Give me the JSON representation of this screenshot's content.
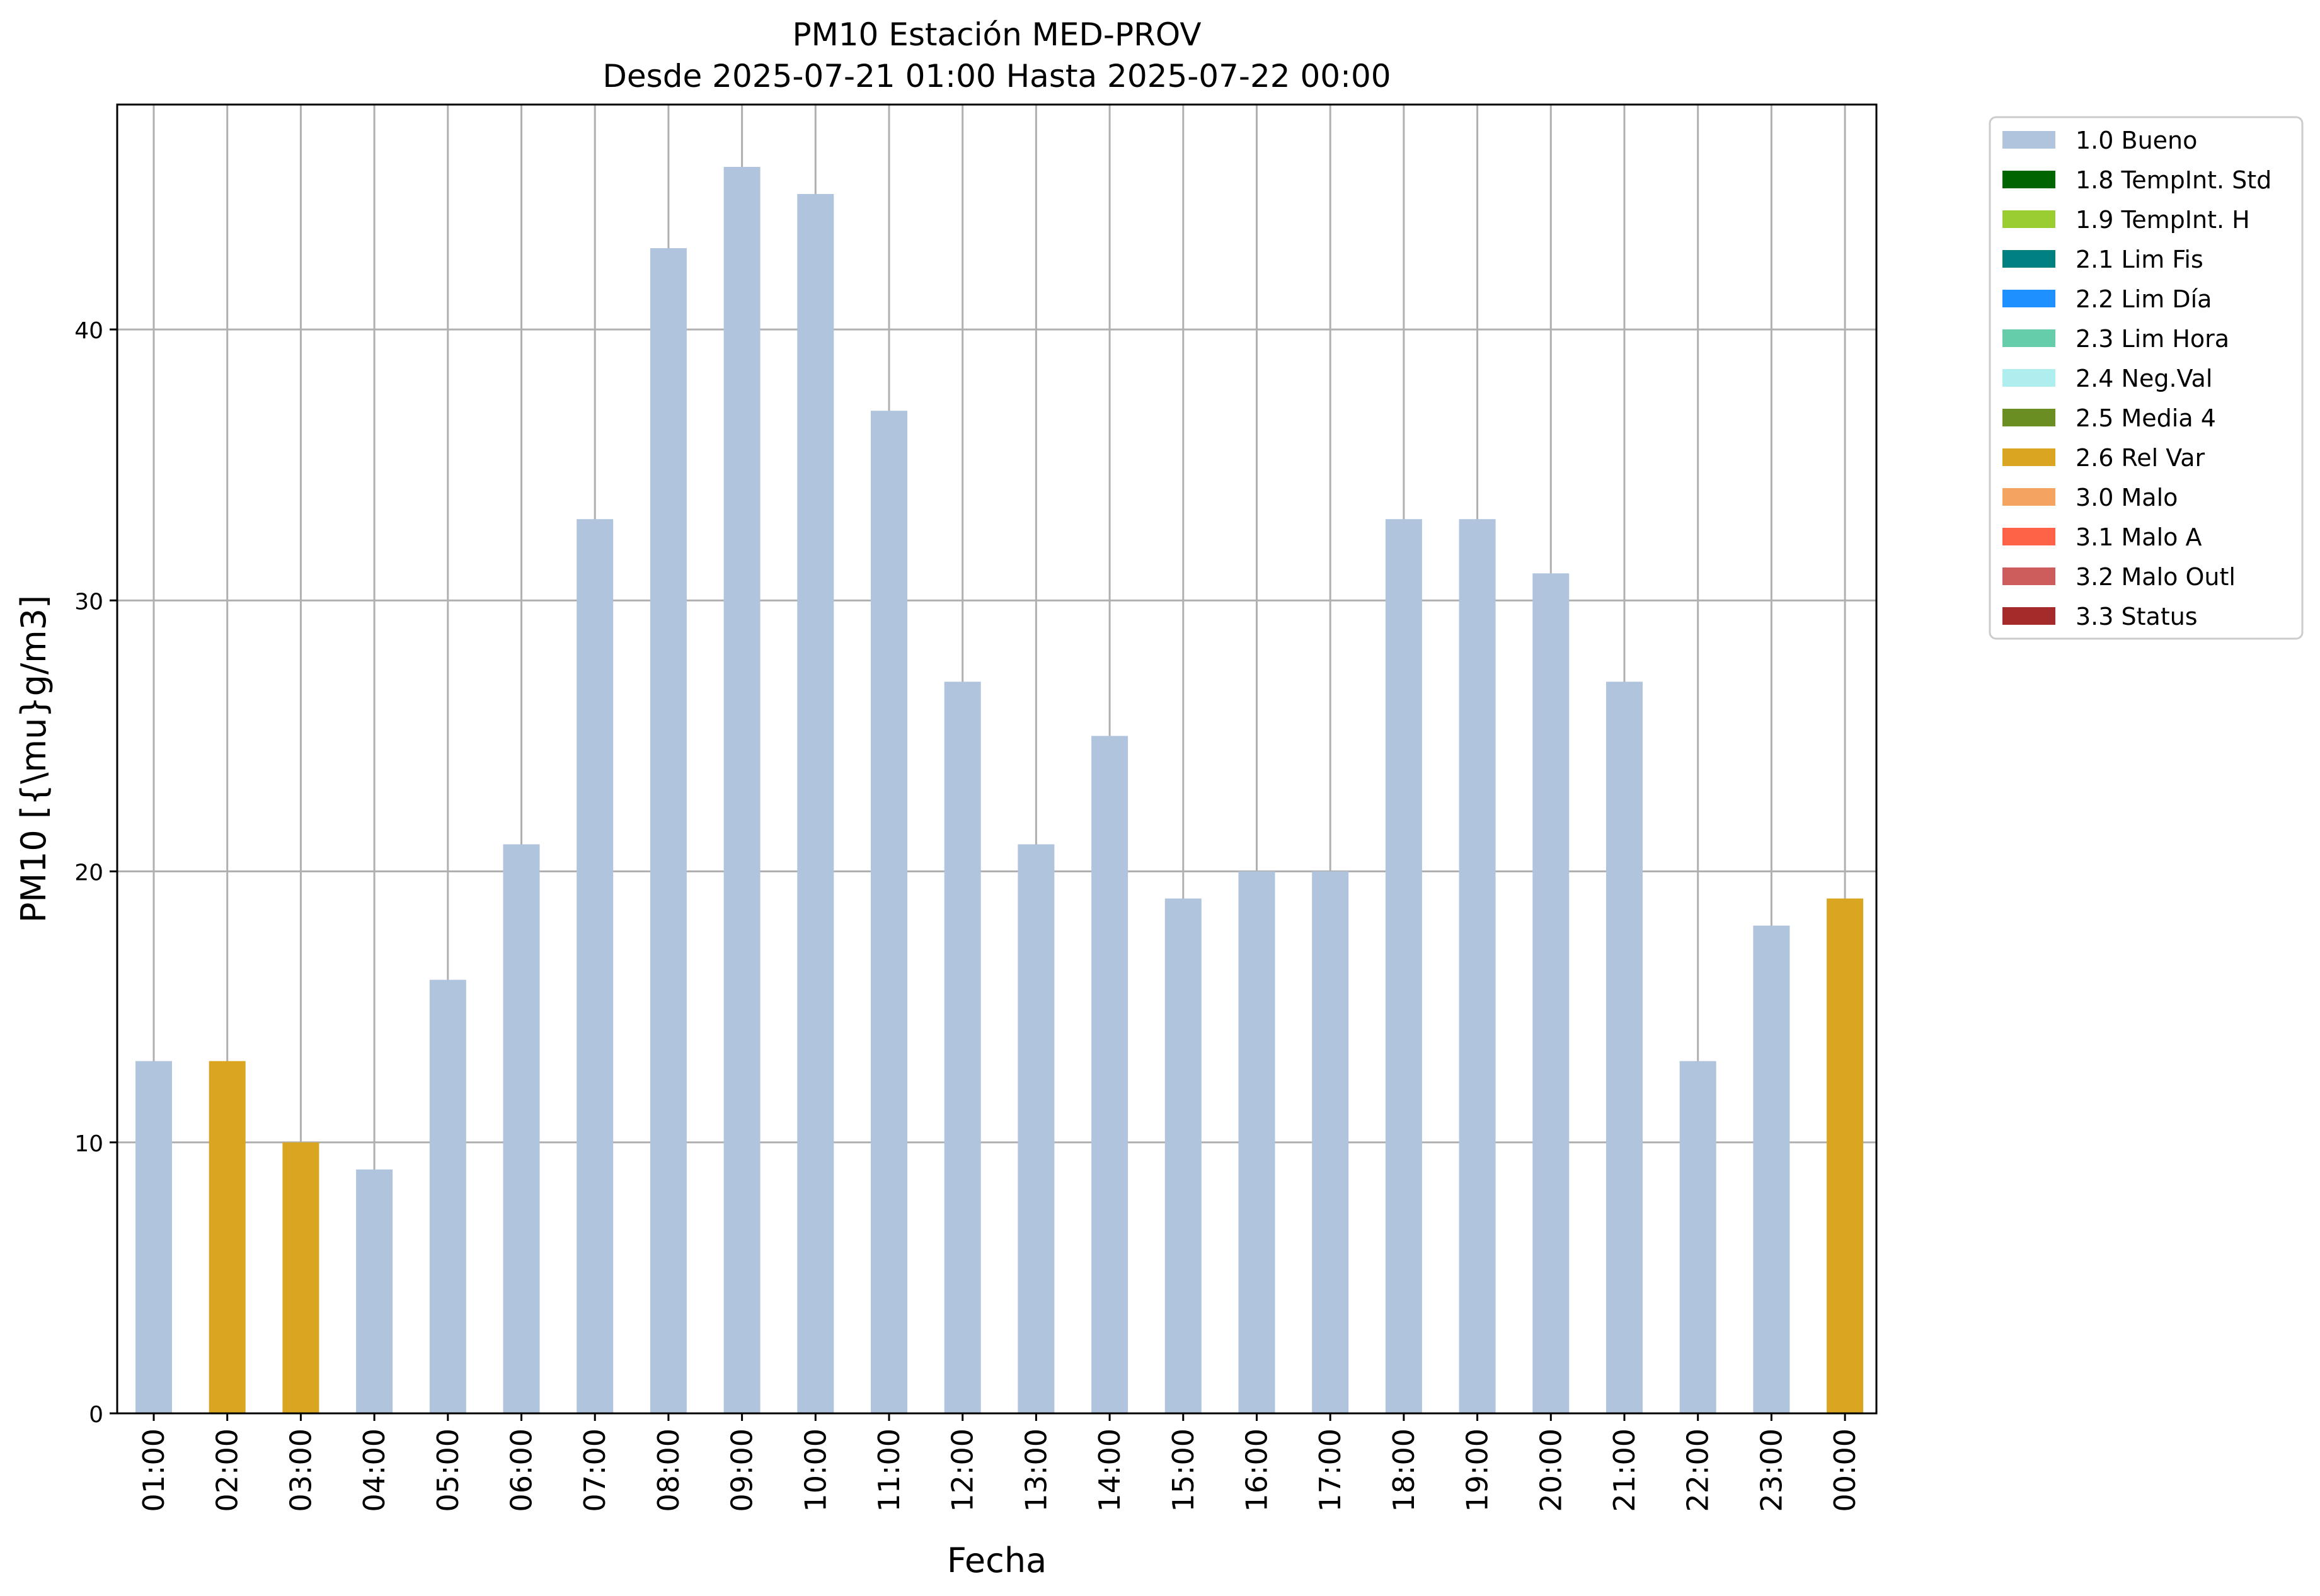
{
  "chart_data": {
    "type": "bar",
    "title": "PM10 Estación MED-PROV",
    "subtitle": "Desde 2025-07-21 01:00 Hasta 2025-07-22 00:00",
    "xlabel": "Fecha",
    "ylabel": "PM10 [{\\mu}g/m3]",
    "ylim": [
      0,
      48.3
    ],
    "yticks": [
      0,
      10,
      20,
      30,
      40
    ],
    "grid": true,
    "legend_position": "outside-top-right",
    "categories": [
      "01:00",
      "02:00",
      "03:00",
      "04:00",
      "05:00",
      "06:00",
      "07:00",
      "08:00",
      "09:00",
      "10:00",
      "11:00",
      "12:00",
      "13:00",
      "14:00",
      "15:00",
      "16:00",
      "17:00",
      "18:00",
      "19:00",
      "20:00",
      "21:00",
      "22:00",
      "23:00",
      "00:00"
    ],
    "values": [
      13,
      13,
      10,
      9,
      16,
      21,
      33,
      43,
      46,
      45,
      37,
      27,
      21,
      25,
      19,
      20,
      20,
      33,
      33,
      31,
      27,
      13,
      18,
      19
    ],
    "flags": [
      "1.0 Bueno",
      "2.6 Rel Var",
      "2.6 Rel Var",
      "1.0 Bueno",
      "1.0 Bueno",
      "1.0 Bueno",
      "1.0 Bueno",
      "1.0 Bueno",
      "1.0 Bueno",
      "1.0 Bueno",
      "1.0 Bueno",
      "1.0 Bueno",
      "1.0 Bueno",
      "1.0 Bueno",
      "1.0 Bueno",
      "1.0 Bueno",
      "1.0 Bueno",
      "1.0 Bueno",
      "1.0 Bueno",
      "1.0 Bueno",
      "1.0 Bueno",
      "1.0 Bueno",
      "1.0 Bueno",
      "2.6 Rel Var"
    ],
    "legend": [
      {
        "label": "1.0 Bueno",
        "color": "#b0c4de"
      },
      {
        "label": "1.8 TempInt. Std",
        "color": "#006400"
      },
      {
        "label": "1.9 TempInt. H",
        "color": "#9acd32"
      },
      {
        "label": "2.1 Lim Fis",
        "color": "#008080"
      },
      {
        "label": "2.2 Lim Día",
        "color": "#1e90ff"
      },
      {
        "label": "2.3 Lim Hora",
        "color": "#66cdaa"
      },
      {
        "label": "2.4 Neg.Val",
        "color": "#afeeee"
      },
      {
        "label": "2.5 Media 4",
        "color": "#6b8e23"
      },
      {
        "label": "2.6 Rel Var",
        "color": "#daa520"
      },
      {
        "label": "3.0 Malo",
        "color": "#f4a460"
      },
      {
        "label": "3.1 Malo A",
        "color": "#ff6347"
      },
      {
        "label": "3.2 Malo Outl",
        "color": "#cd5c5c"
      },
      {
        "label": "3.3 Status",
        "color": "#a52a2a"
      }
    ]
  }
}
